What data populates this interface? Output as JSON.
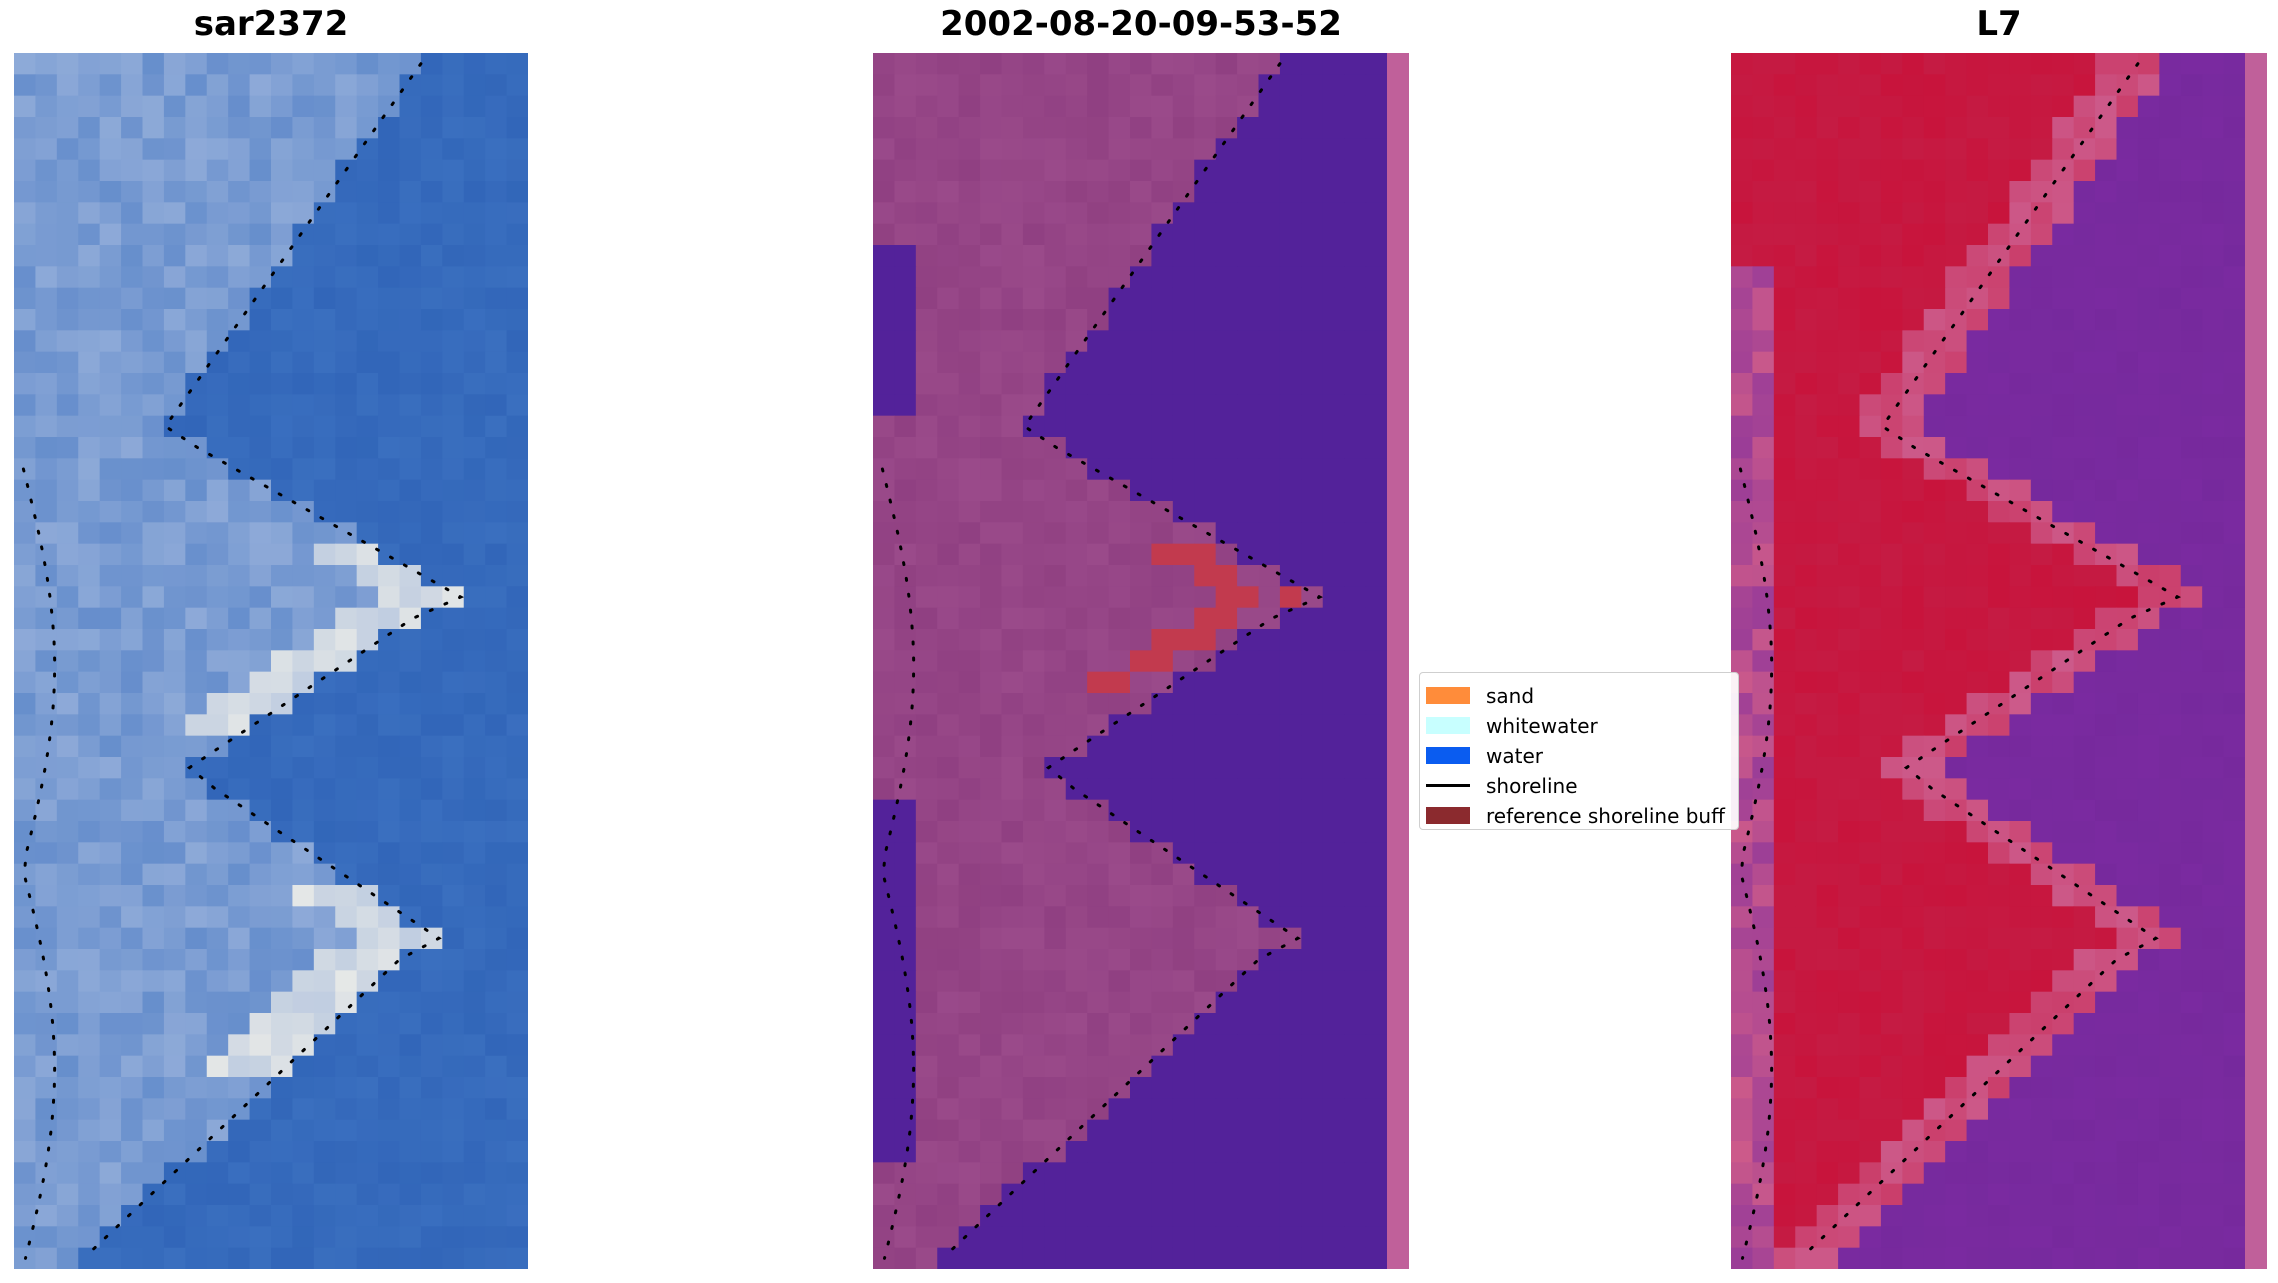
{
  "panels": [
    {
      "title": "sar2372",
      "kind": "rgb"
    },
    {
      "title": "2002-08-20-09-53-52",
      "kind": "classified"
    },
    {
      "title": "L7",
      "kind": "mndwi"
    }
  ],
  "legend": {
    "items": [
      {
        "label": "sand",
        "type": "patch",
        "color": "#ff8c3a"
      },
      {
        "label": "whitewater",
        "type": "patch",
        "color": "#c8ffff"
      },
      {
        "label": "water",
        "type": "patch",
        "color": "#0a5cf0"
      },
      {
        "label": "shoreline",
        "type": "line",
        "color": "#000000"
      },
      {
        "label": "reference shoreline buff",
        "type": "patch",
        "color": "#8b2a2e"
      }
    ]
  },
  "colors": {
    "rgb_water": "#3a6fbf",
    "rgb_land": "#a9bde0",
    "rgb_bright": "#f4f2ea",
    "class_water": "#53229a",
    "class_land": "#9a4a8a",
    "class_buffer": "#c23a4e",
    "class_edge_strip": "#c0609a",
    "mndwi_land": "#c8143c",
    "mndwi_water": "#7a2aa0",
    "mndwi_edge": "#cc5a8a"
  }
}
